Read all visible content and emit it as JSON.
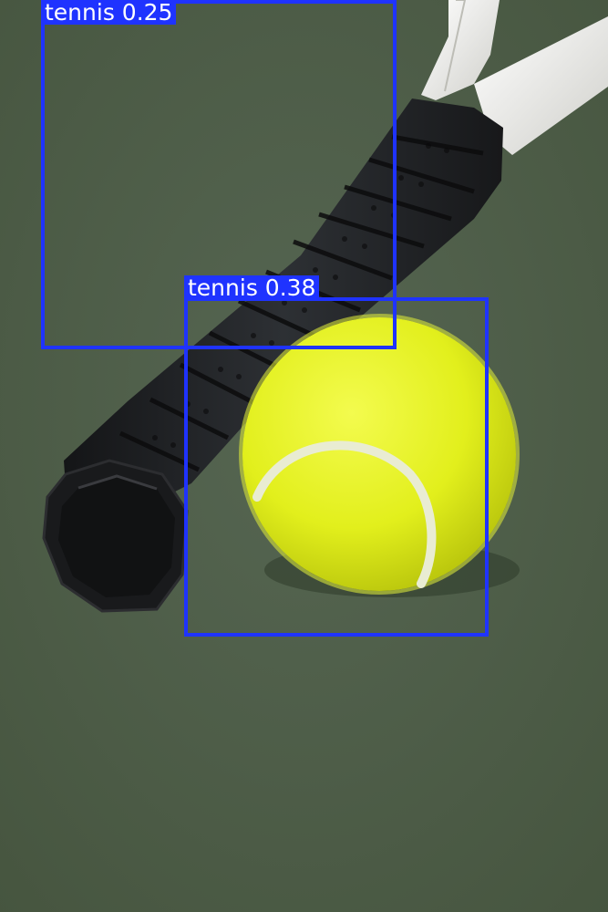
{
  "detections": [
    {
      "label": "tennis",
      "score": "0.25",
      "caption": "tennis 0.25",
      "color": "#1f33ff"
    },
    {
      "label": "tennis",
      "score": "0.38",
      "caption": "tennis 0.38",
      "color": "#1f33ff"
    }
  ],
  "colors": {
    "court": "#4e5d49",
    "ball": "#e4f21a",
    "grip": "#1e2023",
    "frame": "#eeeeea"
  }
}
